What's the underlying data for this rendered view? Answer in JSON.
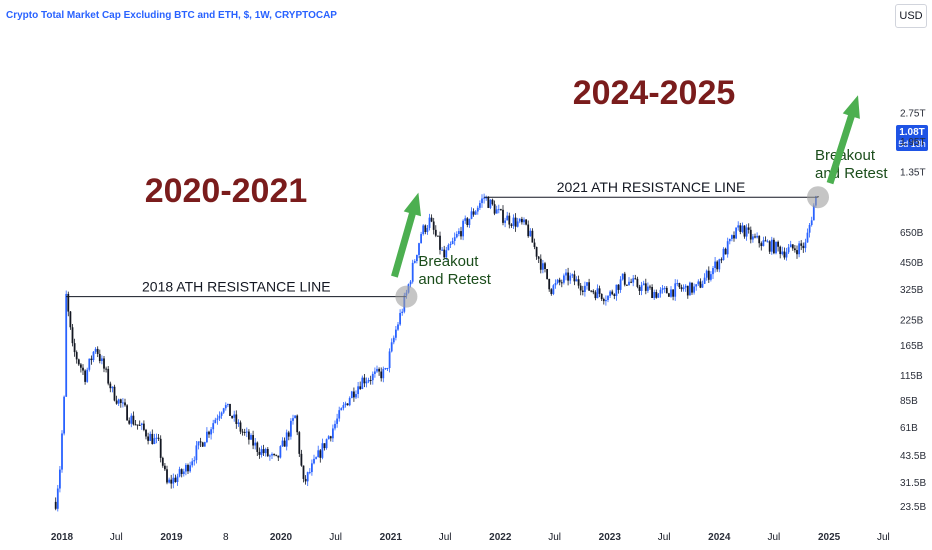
{
  "header": {
    "title": "Crypto Total Market Cap Excluding BTC and ETH, $, 1W, CRYPTOCAP",
    "currency": "USD"
  },
  "price_tag": {
    "value": "1.08T",
    "countdown": "5d 13h"
  },
  "colors": {
    "up": "#2962ff",
    "down": "#131722",
    "arrow": "#4caf50",
    "title": "#7a1c1c",
    "line": "#131722",
    "tag": "#1e53e5"
  },
  "chart_data": {
    "type": "candlestick",
    "scale": "log",
    "y_ticks": [
      "2.75T",
      "1.95T",
      "1.35T",
      "650B",
      "450B",
      "325B",
      "225B",
      "165B",
      "115B",
      "85B",
      "61B",
      "43.5B",
      "31.5B",
      "23.5B"
    ],
    "x_ticks": [
      "2018",
      "Jul",
      "2019",
      "8",
      "2020",
      "Jul",
      "2021",
      "Jul",
      "2022",
      "Jul",
      "2023",
      "Jul",
      "2024",
      "Jul",
      "2025",
      "Jul"
    ],
    "x_tick_bold": [
      true,
      false,
      true,
      false,
      true,
      false,
      true,
      false,
      true,
      false,
      true,
      false,
      true,
      false,
      true,
      false
    ],
    "anchors": [
      {
        "date": "2017-12-11",
        "v": 25
      },
      {
        "date": "2017-12-25",
        "v": 38
      },
      {
        "date": "2018-01-08",
        "v": 85
      },
      {
        "date": "2018-01-15",
        "v": 300
      },
      {
        "date": "2018-02-05",
        "v": 160
      },
      {
        "date": "2018-03-19",
        "v": 115
      },
      {
        "date": "2018-04-23",
        "v": 165
      },
      {
        "date": "2018-06-18",
        "v": 95
      },
      {
        "date": "2018-08-13",
        "v": 70
      },
      {
        "date": "2018-11-19",
        "v": 50
      },
      {
        "date": "2018-12-17",
        "v": 31
      },
      {
        "date": "2019-02-11",
        "v": 36
      },
      {
        "date": "2019-04-22",
        "v": 55
      },
      {
        "date": "2019-06-24",
        "v": 82
      },
      {
        "date": "2019-08-19",
        "v": 60
      },
      {
        "date": "2019-10-14",
        "v": 48
      },
      {
        "date": "2019-12-16",
        "v": 41
      },
      {
        "date": "2020-02-17",
        "v": 70
      },
      {
        "date": "2020-03-16",
        "v": 31
      },
      {
        "date": "2020-05-18",
        "v": 48
      },
      {
        "date": "2020-08-17",
        "v": 90
      },
      {
        "date": "2020-09-28",
        "v": 110
      },
      {
        "date": "2020-12-14",
        "v": 120
      },
      {
        "date": "2021-01-18",
        "v": 200
      },
      {
        "date": "2021-02-22",
        "v": 310
      },
      {
        "date": "2021-04-12",
        "v": 650
      },
      {
        "date": "2021-05-10",
        "v": 750
      },
      {
        "date": "2021-06-28",
        "v": 480
      },
      {
        "date": "2021-08-16",
        "v": 650
      },
      {
        "date": "2021-11-08",
        "v": 1000
      },
      {
        "date": "2022-01-03",
        "v": 800
      },
      {
        "date": "2022-03-28",
        "v": 700
      },
      {
        "date": "2022-05-16",
        "v": 450
      },
      {
        "date": "2022-06-20",
        "v": 330
      },
      {
        "date": "2022-08-15",
        "v": 380
      },
      {
        "date": "2022-10-24",
        "v": 330
      },
      {
        "date": "2022-12-26",
        "v": 300
      },
      {
        "date": "2023-02-13",
        "v": 370
      },
      {
        "date": "2023-06-12",
        "v": 310
      },
      {
        "date": "2023-08-14",
        "v": 330
      },
      {
        "date": "2023-10-16",
        "v": 330
      },
      {
        "date": "2023-12-25",
        "v": 450
      },
      {
        "date": "2024-03-11",
        "v": 700
      },
      {
        "date": "2024-04-22",
        "v": 600
      },
      {
        "date": "2024-06-17",
        "v": 560
      },
      {
        "date": "2024-08-05",
        "v": 520
      },
      {
        "date": "2024-10-14",
        "v": 560
      },
      {
        "date": "2024-11-11",
        "v": 900
      },
      {
        "date": "2024-11-25",
        "v": 1080
      }
    ],
    "resistance_lines": [
      {
        "label": "2018 ATH RESISTANCE LINE",
        "start": "2018-01-15",
        "end": "2021-02-22",
        "value": 300
      },
      {
        "label": "2021 ATH RESISTANCE LINE",
        "start": "2021-11-08",
        "end": "2024-11-25",
        "value": 1000
      }
    ],
    "annotations": {
      "period_a": "2020-2021",
      "period_b": "2024-2025",
      "breakout_a": [
        "Breakout",
        "and Retest"
      ],
      "breakout_b": [
        "Breakout",
        "and Retest"
      ]
    }
  }
}
